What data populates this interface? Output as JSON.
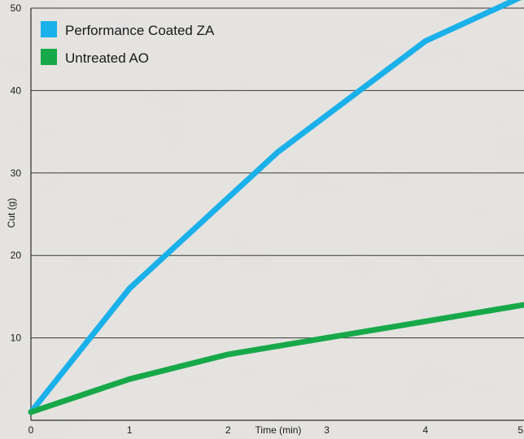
{
  "chart_data": {
    "type": "line",
    "title": "",
    "xlabel": "Time (min)",
    "ylabel": "Cut (g)",
    "xlim": [
      0,
      5
    ],
    "ylim": [
      0,
      50
    ],
    "x_ticks": [
      "0",
      "1",
      "2",
      "3",
      "4",
      "5"
    ],
    "y_ticks": [
      "10",
      "20",
      "30",
      "40",
      "50"
    ],
    "grid": "horizontal",
    "legend_position": "top-left",
    "series": [
      {
        "name": "Performance Coated ZA",
        "color": "#1ab0ea",
        "x": [
          0,
          1,
          2,
          2.5,
          3,
          3.5,
          4,
          5
        ],
        "y": [
          1,
          16,
          27,
          32.5,
          37,
          41.5,
          46,
          51.5
        ]
      },
      {
        "name": "Untreated AO",
        "color": "#17a84a",
        "x": [
          0,
          1,
          2,
          3,
          4,
          5
        ],
        "y": [
          1,
          5,
          8,
          10,
          12,
          14
        ]
      }
    ]
  }
}
